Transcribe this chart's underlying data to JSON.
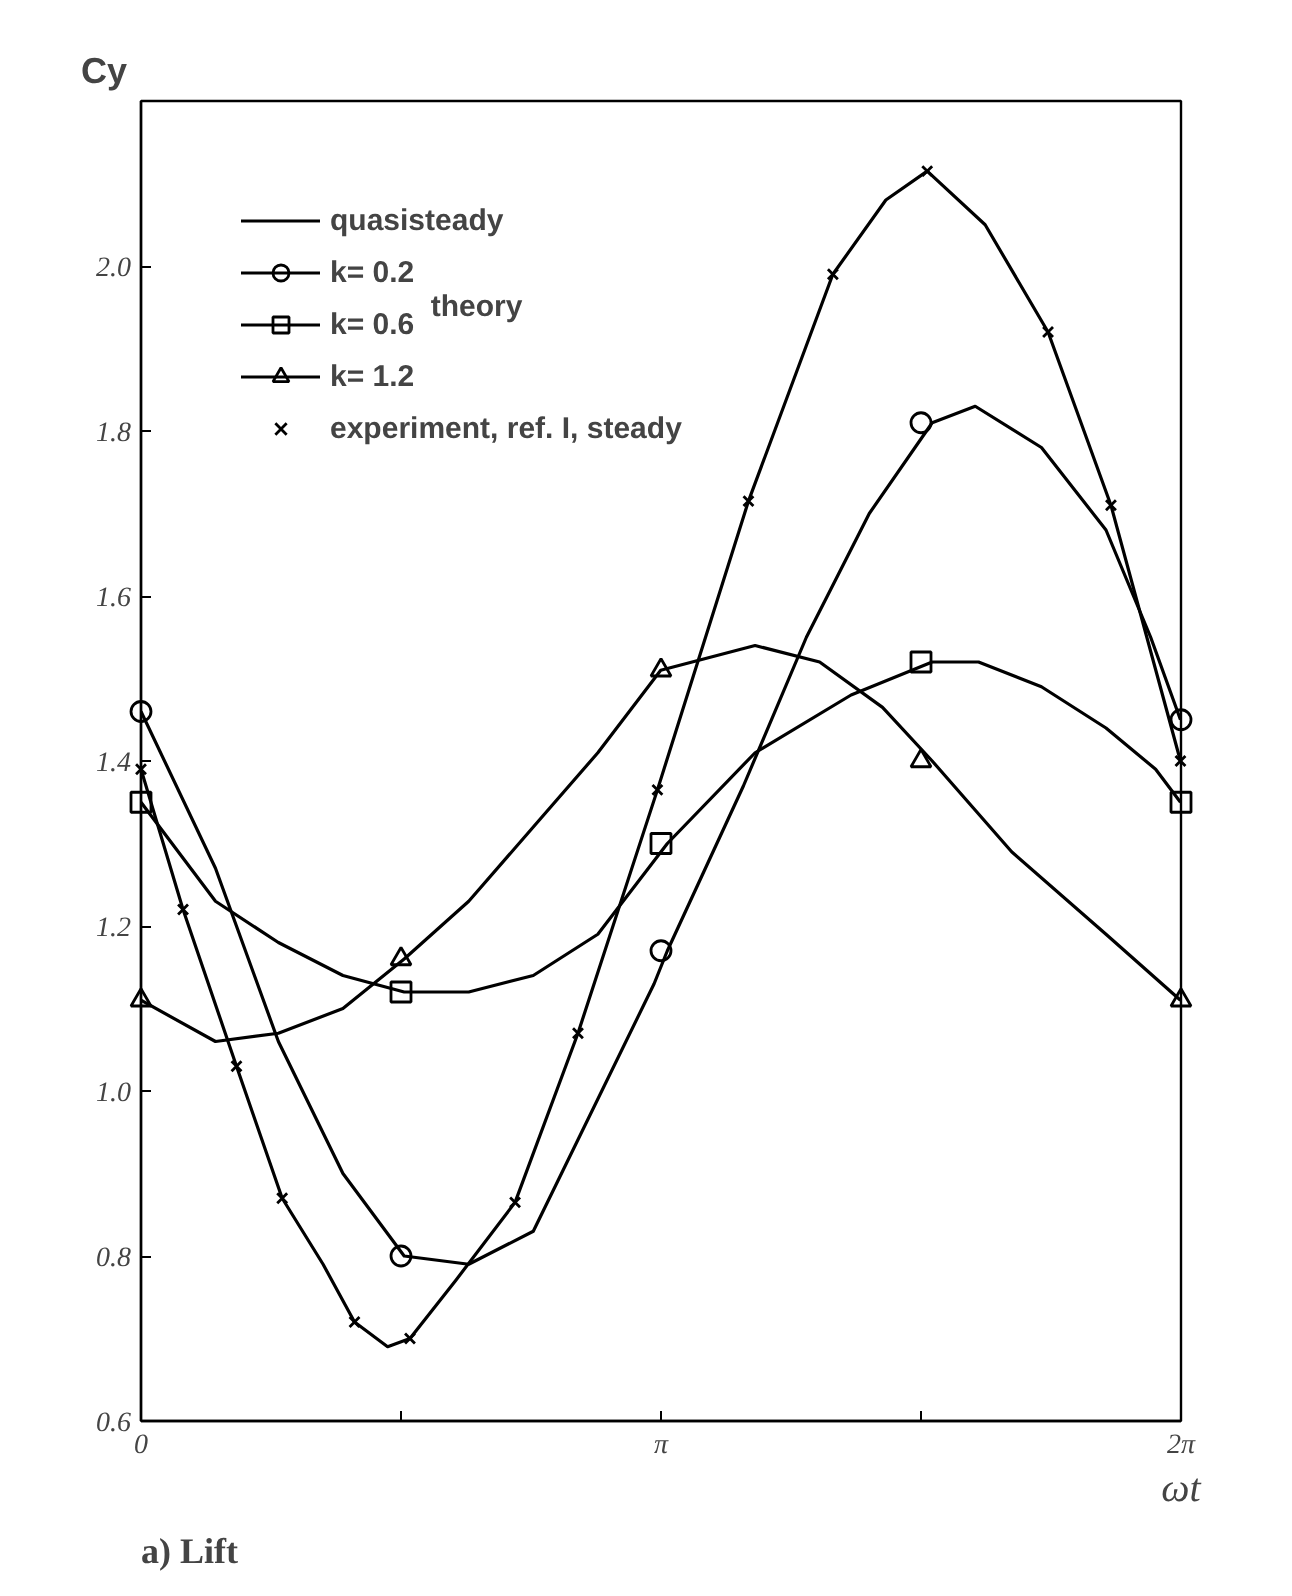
{
  "chart_data": {
    "type": "line",
    "title": "a) Lift",
    "xlabel": "ωt",
    "ylabel": "Cy",
    "xlim": [
      0,
      6.2832
    ],
    "xticks": [
      {
        "value": 0,
        "label": "0"
      },
      {
        "value": 1.5708,
        "label": null
      },
      {
        "value": 3.1416,
        "label": "π"
      },
      {
        "value": 4.7124,
        "label": null
      },
      {
        "value": 6.2832,
        "label": "2π"
      }
    ],
    "ylim": [
      0.6,
      2.2
    ],
    "yticks": [
      0.6,
      0.8,
      {
        "value": 1.0,
        "label": "1.0"
      },
      1.2,
      1.4,
      1.6,
      1.8,
      {
        "value": 2.0,
        "label": "2.0"
      }
    ],
    "grid": false,
    "legend": "top left",
    "annotations": [
      "theory"
    ],
    "series": [
      {
        "name": "quasisteady",
        "marker": "none",
        "color": "#000000",
        "x": [
          0,
          0.254,
          0.577,
          0.853,
          1.1,
          1.29,
          1.49,
          1.625,
          1.9,
          2.26,
          2.64,
          3.12,
          3.67,
          4.18,
          4.5,
          4.75,
          5.1,
          5.48,
          5.86,
          6.28
        ],
        "values": [
          1.39,
          1.22,
          1.03,
          0.87,
          0.79,
          0.72,
          0.69,
          0.7,
          0.77,
          0.865,
          1.07,
          1.365,
          1.715,
          1.99,
          2.08,
          2.115,
          2.05,
          1.92,
          1.71,
          1.4
        ]
      },
      {
        "marker": "none",
        "color": "#000000",
        "x": [
          0,
          0.45,
          0.83,
          1.22,
          1.59,
          1.98,
          2.37,
          3.1,
          3.18,
          3.64,
          4.02,
          4.4,
          4.78,
          5.04,
          5.44,
          5.83,
          6.1,
          6.28
        ],
        "values": [
          1.46,
          1.27,
          1.06,
          0.9,
          0.8,
          0.79,
          0.83,
          1.13,
          1.17,
          1.37,
          1.55,
          1.7,
          1.81,
          1.83,
          1.78,
          1.68,
          1.55,
          1.45
        ]
      },
      {
        "name": "k= 0.2",
        "type": "scatter",
        "marker": "circle",
        "color": "#000000",
        "x": [
          0,
          1.5708,
          3.1416,
          4.7124,
          6.2832
        ],
        "values": [
          1.46,
          0.8,
          1.17,
          1.81,
          1.45
        ]
      },
      {
        "marker": "none",
        "color": "#000000",
        "x": [
          0,
          0.45,
          0.83,
          1.22,
          1.59,
          1.98,
          2.37,
          2.76,
          3.18,
          3.71,
          4.29,
          4.78,
          5.06,
          5.44,
          5.83,
          6.13,
          6.28
        ],
        "values": [
          1.35,
          1.23,
          1.18,
          1.14,
          1.12,
          1.12,
          1.14,
          1.19,
          1.3,
          1.41,
          1.48,
          1.52,
          1.52,
          1.49,
          1.44,
          1.39,
          1.35
        ]
      },
      {
        "name": "k= 0.6",
        "type": "scatter",
        "marker": "square",
        "color": "#000000",
        "x": [
          0,
          1.5708,
          3.1416,
          4.7124,
          6.2832
        ],
        "values": [
          1.35,
          1.12,
          1.3,
          1.52,
          1.35
        ]
      },
      {
        "marker": "none",
        "color": "#000000",
        "x": [
          0,
          0.45,
          0.83,
          1.22,
          1.59,
          1.98,
          2.37,
          2.76,
          3.14,
          3.71,
          4.1,
          4.48,
          4.78,
          5.26,
          5.83,
          6.28
        ],
        "values": [
          1.11,
          1.06,
          1.07,
          1.1,
          1.16,
          1.23,
          1.32,
          1.41,
          1.51,
          1.54,
          1.52,
          1.465,
          1.4,
          1.29,
          1.19,
          1.11
        ]
      },
      {
        "name": "k= 1.2",
        "type": "scatter",
        "marker": "triangle",
        "color": "#000000",
        "x": [
          0,
          1.5708,
          3.1416,
          4.7124,
          6.2832
        ],
        "values": [
          1.11,
          1.16,
          1.51,
          1.4,
          1.11
        ]
      },
      {
        "name": "experiment, ref. I, steady",
        "type": "scatter",
        "marker": "cross",
        "color": "#000000",
        "x": [
          0,
          0.254,
          0.577,
          0.853,
          1.29,
          1.625,
          2.26,
          2.64,
          3.12,
          3.67,
          4.18,
          4.75,
          5.48,
          5.86,
          6.28
        ],
        "values": [
          1.39,
          1.22,
          1.03,
          0.87,
          0.72,
          0.7,
          0.865,
          1.07,
          1.365,
          1.715,
          1.99,
          2.115,
          1.92,
          1.71,
          1.4
        ]
      }
    ]
  }
}
